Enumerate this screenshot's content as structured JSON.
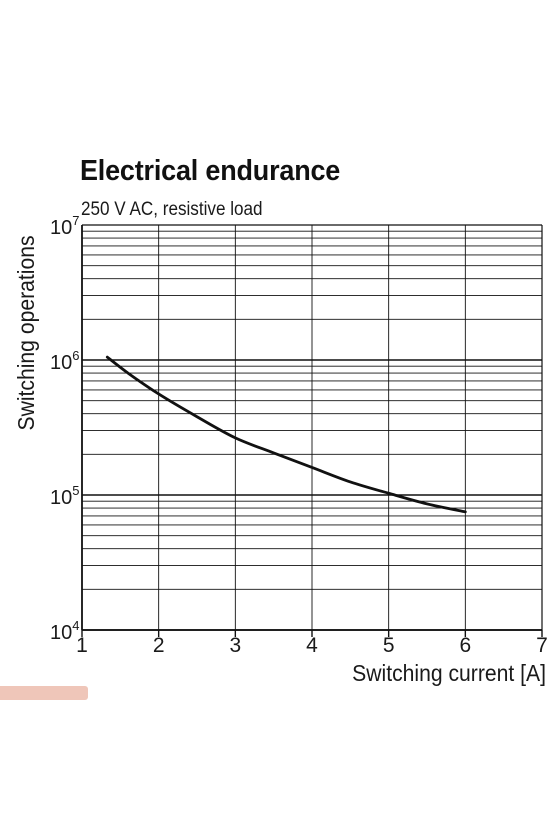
{
  "chart_data": {
    "type": "line",
    "title": "Electrical endurance",
    "subtitle": "250 V AC, resistive load",
    "xlabel": "Switching current [A]",
    "ylabel": "Switching operations",
    "xlim": [
      1,
      7
    ],
    "ylim": [
      10000,
      10000000
    ],
    "y_scale": "log",
    "grid": true,
    "x_ticks": [
      "1",
      "2",
      "3",
      "4",
      "5",
      "6",
      "7"
    ],
    "y_ticks": [
      {
        "base": "10",
        "exp": "4",
        "value": 10000
      },
      {
        "base": "10",
        "exp": "5",
        "value": 100000
      },
      {
        "base": "10",
        "exp": "6",
        "value": 1000000
      },
      {
        "base": "10",
        "exp": "7",
        "value": 10000000
      }
    ],
    "series": [
      {
        "color": "#111111",
        "points": [
          {
            "x": 1.33,
            "y": 1050000
          },
          {
            "x": 1.6,
            "y": 800000
          },
          {
            "x": 2.0,
            "y": 560000
          },
          {
            "x": 2.5,
            "y": 380000
          },
          {
            "x": 3.0,
            "y": 265000
          },
          {
            "x": 3.5,
            "y": 205000
          },
          {
            "x": 4.0,
            "y": 160000
          },
          {
            "x": 4.5,
            "y": 125000
          },
          {
            "x": 5.0,
            "y": 103000
          },
          {
            "x": 5.5,
            "y": 86000
          },
          {
            "x": 6.0,
            "y": 75000
          }
        ]
      }
    ]
  },
  "colors": {
    "axis": "#111111",
    "grid": "#111111",
    "watermark": "#efc6b9"
  }
}
